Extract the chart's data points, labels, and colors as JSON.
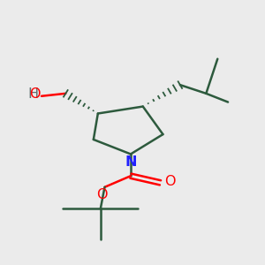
{
  "background_color": "#ebebeb",
  "bond_color": "#2d5a3d",
  "N_color": "#2020ff",
  "O_color": "#ff0000",
  "figsize": [
    3.0,
    3.0
  ],
  "dpi": 100,
  "xlim": [
    0,
    10
  ],
  "ylim": [
    0,
    10
  ]
}
